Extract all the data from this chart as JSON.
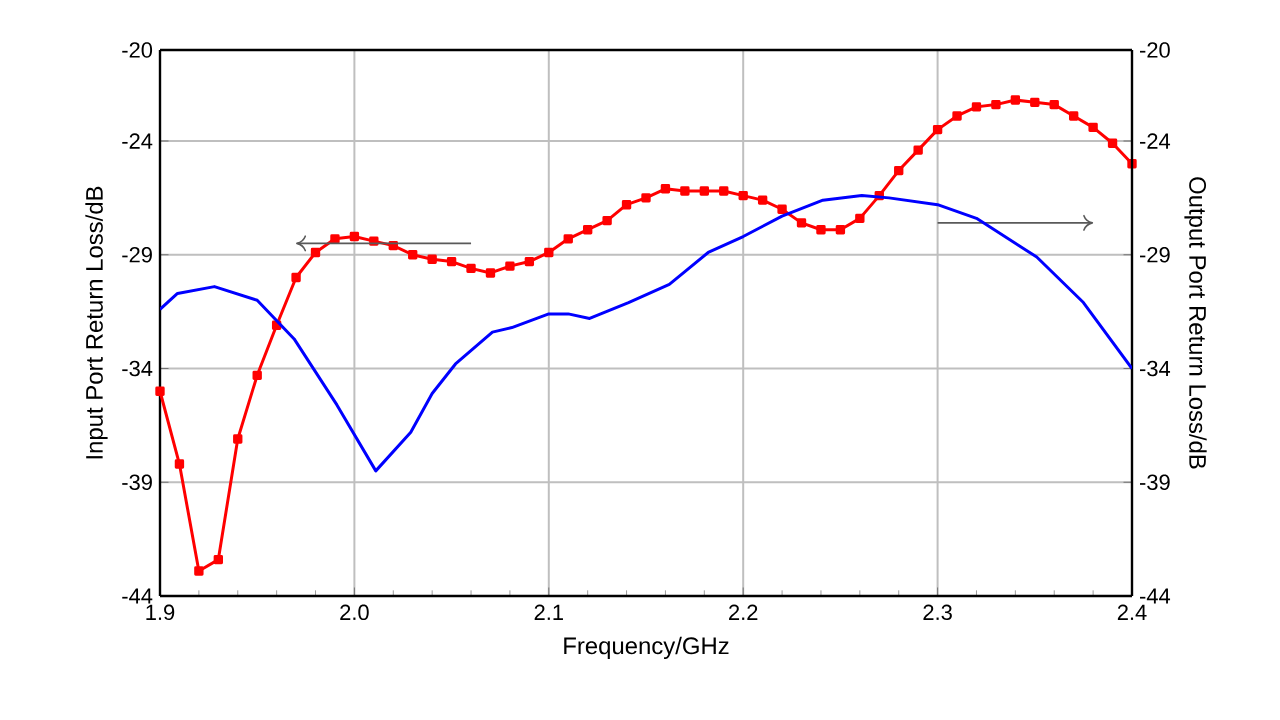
{
  "chart_data": {
    "type": "line",
    "xlabel": "Frequency/GHz",
    "ylabel": "Input Port Return Loss/dB",
    "y2label": "Output Port Return Loss/dB",
    "xlim": [
      1.9,
      2.4
    ],
    "xticks": [
      1.9,
      {
        "value": 2,
        "label": "2.0"
      },
      2.1,
      2.2,
      2.3,
      2.4
    ],
    "ylim": [
      -44,
      -20
    ],
    "yticks": [
      -44,
      -39,
      -34,
      -29,
      -24,
      -20
    ],
    "y2lim": [
      -44,
      -20
    ],
    "y2ticks": [
      -44,
      -39,
      -34,
      -29,
      -24,
      -20
    ],
    "grid": true,
    "series": [
      {
        "color": "#ff0000",
        "marker": "square",
        "x": [
          1.9,
          1.91,
          1.92,
          1.93,
          1.94,
          1.95,
          1.96,
          1.97,
          1.98,
          1.99,
          2.0,
          2.01,
          2.02,
          2.03,
          2.04,
          2.05,
          2.06,
          2.07,
          2.08,
          2.09,
          2.1,
          2.11,
          2.12,
          2.13,
          2.14,
          2.15,
          2.16,
          2.17,
          2.18,
          2.19,
          2.2,
          2.21,
          2.22,
          2.23,
          2.24,
          2.25,
          2.26,
          2.27,
          2.28,
          2.29,
          2.3,
          2.31,
          2.32,
          2.33,
          2.34,
          2.35,
          2.36,
          2.37,
          2.38,
          2.39,
          2.4
        ],
        "values": [
          -35.0,
          -38.2,
          -42.9,
          -42.4,
          -37.1,
          -34.3,
          -32.1,
          -30.0,
          -28.9,
          -28.3,
          -28.2,
          -28.4,
          -28.6,
          -29.0,
          -29.2,
          -29.3,
          -29.6,
          -29.8,
          -29.5,
          -29.3,
          -28.9,
          -28.3,
          -27.9,
          -27.5,
          -26.8,
          -26.5,
          -26.1,
          -26.2,
          -26.2,
          -26.2,
          -26.4,
          -26.6,
          -27.0,
          -27.6,
          -27.9,
          -27.9,
          -27.4,
          -26.4,
          -25.3,
          -24.4,
          -23.5,
          -22.9,
          -22.5,
          -22.4,
          -22.2,
          -22.3,
          -22.4,
          -22.9,
          -23.4,
          -24.1,
          -25.0
        ]
      },
      {
        "color": "#0000ff",
        "marker": "none",
        "axis": "y2",
        "x": [
          1.9,
          1.909,
          1.928,
          1.95,
          1.969,
          1.991,
          2.011,
          2.029,
          2.04,
          2.052,
          2.071,
          2.081,
          2.1,
          2.11,
          2.121,
          2.141,
          2.162,
          2.182,
          2.2,
          2.22,
          2.241,
          2.261,
          2.275,
          2.3,
          2.32,
          2.351,
          2.375,
          2.4
        ],
        "values": [
          -31.4,
          -30.7,
          -30.4,
          -31.0,
          -32.7,
          -35.6,
          -38.5,
          -36.8,
          -35.1,
          -33.8,
          -32.4,
          -32.2,
          -31.6,
          -31.6,
          -31.8,
          -31.1,
          -30.3,
          -28.9,
          -28.2,
          -27.3,
          -26.6,
          -26.4,
          -26.5,
          -26.8,
          -27.4,
          -29.1,
          -31.1,
          -34.0
        ]
      }
    ]
  }
}
